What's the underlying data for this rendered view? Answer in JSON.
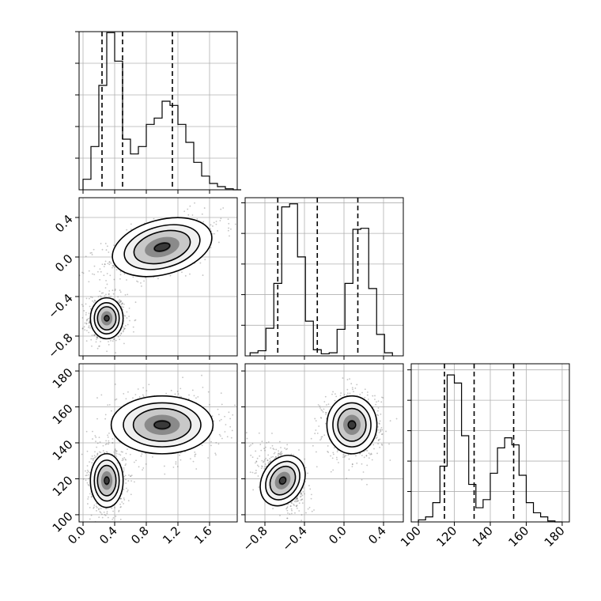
{
  "chart_data": [
    {
      "type": "histogram",
      "panel": "hist-p0",
      "xlim": [
        -0.05,
        1.95
      ],
      "grid": true,
      "bins": [
        0.0,
        0.1,
        0.2,
        0.3,
        0.4,
        0.5,
        0.6,
        0.7,
        0.8,
        0.9,
        1.0,
        1.1,
        1.2,
        1.3,
        1.4,
        1.5,
        1.6,
        1.7,
        1.8,
        1.9
      ],
      "counts": [
        0.1,
        0.41,
        0.99,
        1.49,
        1.22,
        0.48,
        0.34,
        0.41,
        0.62,
        0.68,
        0.84,
        0.8,
        0.62,
        0.45,
        0.26,
        0.13,
        0.06,
        0.03,
        0.01,
        0
      ],
      "quantiles": [
        0.24,
        0.5,
        1.13
      ],
      "ylim": [
        0,
        1.5
      ]
    },
    {
      "type": "histogram",
      "panel": "hist-p1",
      "xlim": [
        -1.0,
        0.6
      ],
      "grid": true,
      "bins": [
        -0.95,
        -0.87,
        -0.79,
        -0.71,
        -0.63,
        -0.55,
        -0.47,
        -0.39,
        -0.31,
        -0.23,
        -0.15,
        -0.07,
        0.01,
        0.09,
        0.17,
        0.25,
        0.33,
        0.41
      ],
      "counts": [
        0.03,
        0.05,
        0.27,
        0.71,
        1.46,
        1.49,
        0.97,
        0.34,
        0.06,
        0.02,
        0.03,
        0.26,
        0.71,
        1.24,
        1.25,
        0.66,
        0.21,
        0.03
      ],
      "quantiles": [
        -0.67,
        -0.27,
        0.14
      ],
      "ylim": [
        0,
        1.55
      ],
      "xticks": [
        -0.8,
        -0.4,
        0.0,
        0.4
      ]
    },
    {
      "type": "histogram",
      "panel": "hist-p2",
      "xlim": [
        96,
        184
      ],
      "grid": true,
      "bins": [
        100,
        104,
        108,
        112,
        116,
        120,
        124,
        128,
        132,
        136,
        140,
        144,
        148,
        152,
        156,
        160,
        164,
        168,
        172,
        176
      ],
      "counts": [
        0.02,
        0.05,
        0.19,
        0.55,
        1.45,
        1.37,
        0.85,
        0.37,
        0.14,
        0.22,
        0.48,
        0.73,
        0.83,
        0.76,
        0.46,
        0.19,
        0.09,
        0.05,
        0.01,
        0
      ],
      "quantiles": [
        114.5,
        131,
        153
      ],
      "ylim": [
        0,
        1.56
      ],
      "xticks": [
        100,
        120,
        140,
        160,
        180
      ]
    },
    {
      "type": "scatter_density",
      "panel": "p0-vs-p1",
      "x_param": "p0",
      "y_param": "p1",
      "xlim": [
        -0.05,
        1.95
      ],
      "ylim": [
        -1.0,
        0.6
      ],
      "clusters": [
        {
          "center": [
            0.3,
            -0.62
          ],
          "sd": [
            0.09,
            0.09
          ],
          "rho": 0.0,
          "weight": 0.5
        },
        {
          "center": [
            1.0,
            0.1
          ],
          "sd": [
            0.28,
            0.12
          ],
          "rho": 0.55,
          "weight": 0.5
        }
      ],
      "yticks": [
        -0.8,
        -0.4,
        0.0,
        0.4
      ]
    },
    {
      "type": "scatter_density",
      "panel": "p0-vs-p2",
      "x_param": "p0",
      "y_param": "p2",
      "xlim": [
        -0.05,
        1.95
      ],
      "ylim": [
        96,
        184
      ],
      "clusters": [
        {
          "center": [
            0.3,
            119
          ],
          "sd": [
            0.09,
            6.5
          ],
          "rho": 0.0,
          "weight": 0.5
        },
        {
          "center": [
            1.0,
            150
          ],
          "sd": [
            0.28,
            7
          ],
          "rho": 0.0,
          "weight": 0.5
        }
      ],
      "xticks": [
        0.0,
        0.4,
        0.8,
        1.2,
        1.6
      ],
      "xtick_labels": [
        "0.0",
        "0.4",
        "0.8",
        "1.2",
        "1.6"
      ],
      "yticks": [
        100,
        120,
        140,
        160,
        180
      ]
    },
    {
      "type": "scatter_density",
      "panel": "p1-vs-p2",
      "x_param": "p1",
      "y_param": "p2",
      "xlim": [
        -1.0,
        0.6
      ],
      "ylim": [
        96,
        184
      ],
      "clusters": [
        {
          "center": [
            -0.62,
            119
          ],
          "sd": [
            0.09,
            6.5
          ],
          "rho": -0.55,
          "weight": 0.5
        },
        {
          "center": [
            0.08,
            150
          ],
          "sd": [
            0.11,
            7
          ],
          "rho": 0.0,
          "weight": 0.5
        }
      ],
      "xticks": [
        -0.8,
        -0.4,
        0.0,
        0.4
      ],
      "xtick_labels": [
        "−0.8",
        "−0.4",
        "0.0",
        "0.4"
      ]
    }
  ],
  "axes": {
    "p1_tick_labels": [
      "−0.8",
      "−0.4",
      "0.0",
      "0.4"
    ],
    "p2_tick_labels": [
      "100",
      "120",
      "140",
      "160",
      "180"
    ],
    "p0_tick_labels": [
      "0.0",
      "0.4",
      "0.8",
      "1.2",
      "1.6"
    ],
    "p1_bottom_tick_labels": [
      "−0.8",
      "−0.4",
      "0.0",
      "0.4"
    ],
    "p2_bottom_tick_labels": [
      "100",
      "120",
      "140",
      "160",
      "180"
    ]
  }
}
